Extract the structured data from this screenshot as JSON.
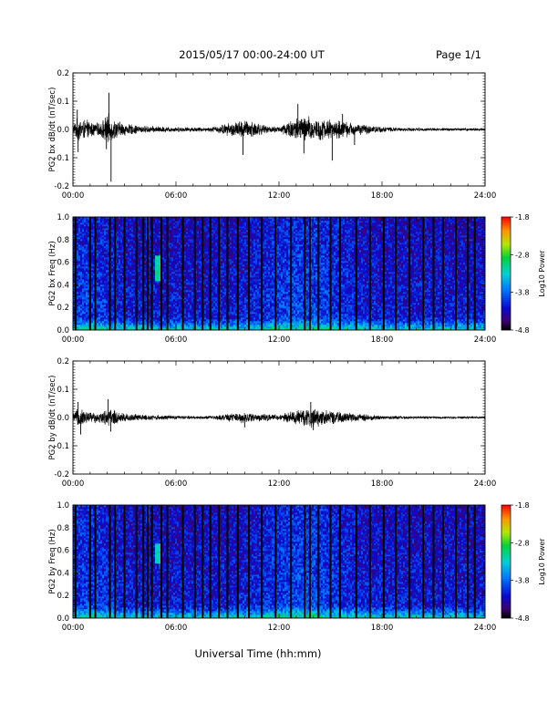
{
  "header": {
    "date_range": "2015/05/17  00:00-24:00 UT",
    "page": "Page 1/1"
  },
  "footer": {
    "xlabel": "Universal Time (hh:mm)"
  },
  "chart_data": [
    {
      "type": "line",
      "panel": "bx-dbdt",
      "ylabel": "PG2 bx dB/dt (nT/sec)",
      "x_tick_labels": [
        "00:00",
        "06:00",
        "12:00",
        "18:00",
        "24:00"
      ],
      "x_range_hours": [
        0,
        24
      ],
      "y_tick_labels": [
        "-0.2",
        "-0.1",
        "0.0",
        "0.1",
        "0.2"
      ],
      "ylim": [
        -0.2,
        0.2
      ],
      "envelope": [
        {
          "t": 0.0,
          "amp": 0.015
        },
        {
          "t": 0.3,
          "amp": 0.04
        },
        {
          "t": 0.8,
          "amp": 0.03
        },
        {
          "t": 1.5,
          "amp": 0.02
        },
        {
          "t": 2.05,
          "amp": 0.05
        },
        {
          "t": 2.3,
          "amp": 0.035
        },
        {
          "t": 3.0,
          "amp": 0.02
        },
        {
          "t": 4.0,
          "amp": 0.012
        },
        {
          "t": 6.0,
          "amp": 0.008
        },
        {
          "t": 8.0,
          "amp": 0.007
        },
        {
          "t": 9.0,
          "amp": 0.02
        },
        {
          "t": 9.8,
          "amp": 0.03
        },
        {
          "t": 10.5,
          "amp": 0.03
        },
        {
          "t": 11.2,
          "amp": 0.012
        },
        {
          "t": 12.0,
          "amp": 0.01
        },
        {
          "t": 12.7,
          "amp": 0.035
        },
        {
          "t": 13.5,
          "amp": 0.045
        },
        {
          "t": 14.5,
          "amp": 0.035
        },
        {
          "t": 15.5,
          "amp": 0.03
        },
        {
          "t": 16.5,
          "amp": 0.02
        },
        {
          "t": 17.5,
          "amp": 0.012
        },
        {
          "t": 19.0,
          "amp": 0.006
        },
        {
          "t": 21.0,
          "amp": 0.005
        },
        {
          "t": 24.0,
          "amp": 0.004
        }
      ],
      "spikes": [
        {
          "t": 2.1,
          "v": 0.13
        },
        {
          "t": 2.22,
          "v": -0.185
        },
        {
          "t": 1.95,
          "v": -0.07
        },
        {
          "t": 0.25,
          "v": 0.07
        },
        {
          "t": 0.3,
          "v": -0.08
        },
        {
          "t": 9.9,
          "v": -0.09
        },
        {
          "t": 13.1,
          "v": 0.09
        },
        {
          "t": 13.45,
          "v": -0.085
        },
        {
          "t": 15.1,
          "v": -0.11
        },
        {
          "t": 15.7,
          "v": 0.055
        },
        {
          "t": 16.4,
          "v": -0.055
        }
      ]
    },
    {
      "type": "heatmap",
      "panel": "bx-spectrogram",
      "ylabel": "PG2 bx Freq (Hz)",
      "x_tick_labels": [
        "00:00",
        "06:00",
        "12:00",
        "18:00",
        "24:00"
      ],
      "x_range_hours": [
        0,
        24
      ],
      "y_tick_labels": [
        "0.0",
        "0.2",
        "0.4",
        "0.6",
        "0.8",
        "1.0"
      ],
      "ylim": [
        0,
        1.0
      ],
      "data_gaps_hours": [
        0.15,
        1.0,
        1.3,
        2.15,
        2.45,
        3.0,
        3.7,
        4.1,
        4.35,
        4.6,
        5.15,
        5.5,
        6.4,
        7.1,
        7.55,
        8.0,
        8.5,
        9.0,
        9.6,
        10.25,
        11.0,
        11.8,
        12.7,
        13.5,
        13.8,
        14.3,
        15.0,
        15.55,
        16.5,
        17.3,
        18.1,
        18.8,
        19.6,
        20.4,
        21.0,
        21.55,
        22.3,
        23.0,
        23.4
      ],
      "features": [
        {
          "t0": 4.75,
          "t1": 5.1,
          "f0": 0.43,
          "f1": 0.66,
          "level": 0.55
        },
        {
          "t0": 4.2,
          "t1": 4.45,
          "f0": 0.8,
          "f1": 1.0,
          "level": 0.3
        },
        {
          "t0": 2.3,
          "t1": 2.6,
          "f0": 0.15,
          "f1": 0.9,
          "level": 0.15
        }
      ],
      "colorbar": {
        "label": "Log10 Power",
        "ticks": [
          "-1.8",
          "-2.8",
          "-3.8",
          "-4.8"
        ],
        "range": [
          -4.8,
          -1.8
        ]
      }
    },
    {
      "type": "line",
      "panel": "by-dbdt",
      "ylabel": "PG2 by dB/dt (nT/sec)",
      "x_tick_labels": [
        "00:00",
        "06:00",
        "12:00",
        "18:00",
        "24:00"
      ],
      "x_range_hours": [
        0,
        24
      ],
      "y_tick_labels": [
        "-0.2",
        "-0.1",
        "0.0",
        "0.1",
        "0.2"
      ],
      "ylim": [
        -0.2,
        0.2
      ],
      "envelope": [
        {
          "t": 0.0,
          "amp": 0.012
        },
        {
          "t": 0.3,
          "amp": 0.03
        },
        {
          "t": 0.8,
          "amp": 0.022
        },
        {
          "t": 1.5,
          "amp": 0.015
        },
        {
          "t": 2.1,
          "amp": 0.03
        },
        {
          "t": 3.0,
          "amp": 0.015
        },
        {
          "t": 4.0,
          "amp": 0.01
        },
        {
          "t": 6.0,
          "amp": 0.006
        },
        {
          "t": 8.0,
          "amp": 0.005
        },
        {
          "t": 9.0,
          "amp": 0.012
        },
        {
          "t": 10.0,
          "amp": 0.018
        },
        {
          "t": 11.0,
          "amp": 0.012
        },
        {
          "t": 12.0,
          "amp": 0.009
        },
        {
          "t": 13.0,
          "amp": 0.025
        },
        {
          "t": 13.9,
          "amp": 0.035
        },
        {
          "t": 14.8,
          "amp": 0.022
        },
        {
          "t": 15.8,
          "amp": 0.016
        },
        {
          "t": 16.8,
          "amp": 0.012
        },
        {
          "t": 18.0,
          "amp": 0.006
        },
        {
          "t": 20.0,
          "amp": 0.004
        },
        {
          "t": 24.0,
          "amp": 0.004
        }
      ],
      "spikes": [
        {
          "t": 0.3,
          "v": 0.055
        },
        {
          "t": 0.45,
          "v": -0.06
        },
        {
          "t": 2.05,
          "v": 0.065
        },
        {
          "t": 2.2,
          "v": -0.05
        },
        {
          "t": 13.85,
          "v": 0.055
        },
        {
          "t": 14.0,
          "v": -0.045
        },
        {
          "t": 10.0,
          "v": -0.035
        }
      ]
    },
    {
      "type": "heatmap",
      "panel": "by-spectrogram",
      "ylabel": "PG2 by Freq (Hz)",
      "x_tick_labels": [
        "00:00",
        "06:00",
        "12:00",
        "18:00",
        "24:00"
      ],
      "x_range_hours": [
        0,
        24
      ],
      "y_tick_labels": [
        "0.0",
        "0.2",
        "0.4",
        "0.6",
        "0.8",
        "1.0"
      ],
      "ylim": [
        0,
        1.0
      ],
      "data_gaps_hours": [
        0.15,
        1.0,
        1.3,
        2.15,
        2.45,
        3.0,
        3.7,
        4.1,
        4.35,
        4.6,
        5.15,
        5.5,
        6.4,
        7.1,
        7.55,
        8.0,
        8.5,
        9.0,
        9.6,
        10.25,
        11.0,
        11.8,
        12.7,
        13.5,
        13.8,
        14.3,
        15.0,
        15.55,
        16.5,
        17.3,
        18.1,
        18.8,
        19.6,
        20.4,
        21.0,
        21.55,
        22.3,
        23.0,
        23.4
      ],
      "features": [
        {
          "t0": 4.75,
          "t1": 5.05,
          "f0": 0.48,
          "f1": 0.66,
          "level": 0.5
        },
        {
          "t0": 4.2,
          "t1": 4.45,
          "f0": 0.85,
          "f1": 1.0,
          "level": 0.28
        },
        {
          "t0": 2.3,
          "t1": 2.6,
          "f0": 0.15,
          "f1": 0.9,
          "level": 0.12
        }
      ],
      "colorbar": {
        "label": "Log10 Power",
        "ticks": [
          "-1.8",
          "-2.8",
          "-3.8",
          "-4.8"
        ],
        "range": [
          -4.8,
          -1.8
        ]
      }
    }
  ]
}
